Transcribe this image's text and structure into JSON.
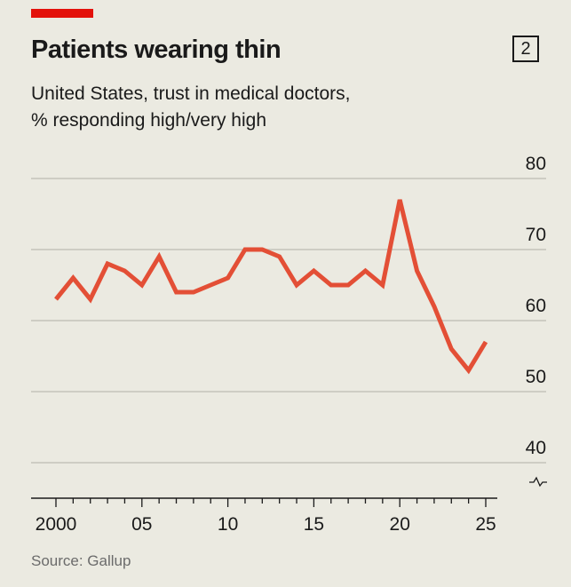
{
  "header": {
    "title": "Patients wearing thin",
    "chart_number": "2",
    "subtitle_line1": "United States, trust in medical doctors,",
    "subtitle_line2": "% responding high/very high"
  },
  "source": "Source: Gallup",
  "colors": {
    "line": "#e34f36",
    "accent": "#e3120b",
    "grid": "#c4c3ba"
  },
  "chart_data": {
    "type": "line",
    "title": "Patients wearing thin",
    "subtitle": "United States, trust in medical doctors, % responding high/very high",
    "xlabel": "",
    "ylabel": "%",
    "ylim": [
      40,
      80
    ],
    "xlim": [
      2000,
      2025
    ],
    "yticks": [
      40,
      50,
      60,
      70,
      80
    ],
    "xticks": [
      {
        "value": 2000,
        "label": "2000"
      },
      {
        "value": 2005,
        "label": "05"
      },
      {
        "value": 2010,
        "label": "10"
      },
      {
        "value": 2015,
        "label": "15"
      },
      {
        "value": 2020,
        "label": "20"
      },
      {
        "value": 2025,
        "label": "25"
      }
    ],
    "grid": true,
    "series": [
      {
        "name": "Trust in medical doctors",
        "x": [
          2000,
          2001,
          2002,
          2003,
          2004,
          2005,
          2006,
          2007,
          2008,
          2009,
          2010,
          2011,
          2012,
          2013,
          2014,
          2015,
          2016,
          2017,
          2018,
          2019,
          2020,
          2021,
          2022,
          2023,
          2024,
          2025
        ],
        "values": [
          63,
          66,
          63,
          68,
          67,
          65,
          69,
          64,
          64,
          65,
          66,
          70,
          70,
          69,
          65,
          67,
          65,
          65,
          67,
          65,
          77,
          67,
          62,
          56,
          53,
          57
        ]
      }
    ]
  }
}
